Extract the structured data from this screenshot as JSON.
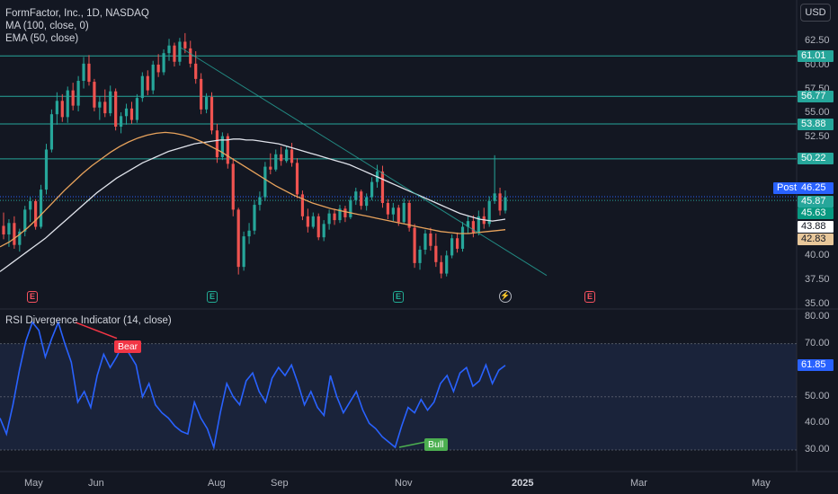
{
  "header": {
    "symbol_line": "FormFactor, Inc., 1D, NASDAQ",
    "ma_line": "MA (100, close, 0)",
    "ema_line": "EMA (50, close)",
    "currency_button": "USD"
  },
  "price_scale": {
    "ticks": [
      "62.50",
      "60.00",
      "57.50",
      "55.00",
      "52.50",
      "40.00",
      "37.50",
      "35.00"
    ],
    "values": [
      62.5,
      60.0,
      57.5,
      55.0,
      52.5,
      40.0,
      37.5,
      35.0
    ]
  },
  "horizontal_levels": [
    {
      "label": "61.01",
      "value": 61.01
    },
    {
      "label": "56.77",
      "value": 56.77
    },
    {
      "label": "53.88",
      "value": 53.88
    },
    {
      "label": "50.22",
      "value": 50.22
    }
  ],
  "price_tags": {
    "post_label": "Post",
    "post_price": "46.25",
    "last_price": "45.87",
    "last_price_2": "45.63",
    "ma_value": "43.88",
    "ema_value": "42.83"
  },
  "price_tag_values": {
    "post": 46.25,
    "last": 45.87,
    "last2": 45.63,
    "ma": 43.88,
    "ema": 42.83
  },
  "events": [
    {
      "symbol": "E",
      "kind": "earnings-past"
    },
    {
      "symbol": "E",
      "kind": "earnings-past"
    },
    {
      "symbol": "E",
      "kind": "earnings-past"
    },
    {
      "symbol": "⚡",
      "kind": "split"
    },
    {
      "symbol": "E",
      "kind": "earnings-upcoming"
    }
  ],
  "rsi": {
    "title": "RSI Divergence Indicator (14, close)",
    "ticks": [
      "80.00",
      "70.00",
      "50.00",
      "40.00",
      "30.00"
    ],
    "tick_values": [
      80,
      70,
      50,
      40,
      30
    ],
    "current_label": "61.85",
    "current_value": 61.85,
    "bear_label": "Bear",
    "bull_label": "Bull"
  },
  "time_axis": [
    "May",
    "Jun",
    "Aug",
    "Sep",
    "Nov",
    "2025",
    "Mar",
    "May"
  ],
  "colors": {
    "background": "#131722",
    "up": "#26a69a",
    "down": "#ef5350",
    "level": "#26a69a",
    "ma": "#e0e3eb",
    "ema": "#e8a35c",
    "rsi_line": "#2962ff",
    "rsi_band": "#1e2a44",
    "post_tag": "#2962ff",
    "bear": "#f23645",
    "bull": "#4caf50"
  },
  "chart_data": {
    "type": "candlestick",
    "ylim": [
      35.0,
      63.5
    ],
    "series_names": [
      "MA (100, close, 0)",
      "EMA (50, close)"
    ],
    "candles": [
      [
        43.2,
        44.6,
        41.8,
        42.3
      ],
      [
        42.3,
        43.9,
        41.0,
        43.5
      ],
      [
        43.5,
        44.2,
        40.8,
        41.2
      ],
      [
        41.2,
        42.9,
        40.5,
        42.6
      ],
      [
        42.6,
        45.3,
        42.1,
        44.9
      ],
      [
        44.9,
        46.2,
        43.6,
        45.8
      ],
      [
        45.8,
        46.0,
        42.8,
        43.1
      ],
      [
        43.1,
        47.5,
        42.9,
        47.0
      ],
      [
        47.0,
        51.8,
        46.5,
        51.2
      ],
      [
        51.2,
        55.4,
        50.9,
        54.9
      ],
      [
        54.9,
        57.2,
        53.8,
        56.3
      ],
      [
        56.3,
        57.0,
        54.1,
        54.6
      ],
      [
        54.6,
        57.8,
        54.0,
        57.4
      ],
      [
        57.4,
        58.2,
        55.3,
        55.8
      ],
      [
        55.8,
        58.9,
        55.2,
        58.4
      ],
      [
        58.4,
        60.9,
        57.6,
        60.2
      ],
      [
        60.2,
        61.1,
        57.9,
        58.3
      ],
      [
        58.3,
        58.6,
        55.2,
        55.6
      ],
      [
        55.6,
        56.8,
        54.3,
        56.2
      ],
      [
        56.2,
        57.5,
        54.6,
        55.0
      ],
      [
        55.0,
        57.9,
        54.7,
        57.3
      ],
      [
        57.3,
        57.6,
        53.2,
        53.6
      ],
      [
        53.6,
        55.1,
        52.9,
        54.7
      ],
      [
        54.7,
        56.0,
        53.8,
        55.5
      ],
      [
        55.5,
        56.2,
        53.9,
        54.3
      ],
      [
        54.3,
        57.0,
        54.0,
        56.6
      ],
      [
        56.6,
        59.3,
        56.2,
        58.9
      ],
      [
        58.9,
        59.5,
        56.9,
        57.4
      ],
      [
        57.4,
        60.5,
        57.0,
        60.1
      ],
      [
        60.1,
        61.2,
        58.8,
        59.3
      ],
      [
        59.3,
        61.7,
        59.0,
        61.3
      ],
      [
        61.3,
        62.8,
        60.5,
        62.1
      ],
      [
        62.1,
        62.4,
        59.9,
        60.4
      ],
      [
        60.4,
        62.9,
        60.0,
        62.5
      ],
      [
        62.5,
        63.4,
        61.3,
        61.8
      ],
      [
        61.8,
        62.6,
        59.8,
        60.2
      ],
      [
        60.2,
        61.5,
        58.1,
        58.6
      ],
      [
        58.6,
        59.2,
        54.9,
        55.4
      ],
      [
        55.4,
        57.1,
        55.0,
        56.7
      ],
      [
        56.7,
        57.2,
        52.8,
        53.2
      ],
      [
        53.2,
        53.9,
        49.8,
        50.4
      ],
      [
        50.4,
        53.0,
        50.1,
        52.6
      ],
      [
        52.6,
        52.9,
        49.2,
        49.7
      ],
      [
        49.7,
        50.3,
        44.2,
        44.9
      ],
      [
        44.9,
        45.1,
        38.1,
        38.9
      ],
      [
        38.9,
        42.6,
        38.5,
        42.1
      ],
      [
        42.1,
        43.5,
        41.3,
        42.7
      ],
      [
        42.7,
        45.9,
        42.3,
        45.4
      ],
      [
        45.4,
        46.8,
        44.8,
        46.2
      ],
      [
        46.2,
        49.9,
        45.8,
        49.4
      ],
      [
        49.4,
        50.8,
        48.6,
        49.1
      ],
      [
        49.1,
        51.2,
        48.9,
        50.7
      ],
      [
        50.7,
        51.5,
        49.5,
        50.0
      ],
      [
        50.0,
        51.6,
        49.8,
        51.2
      ],
      [
        51.2,
        51.9,
        49.4,
        49.8
      ],
      [
        49.8,
        50.3,
        46.1,
        46.5
      ],
      [
        46.5,
        46.9,
        43.8,
        44.2
      ],
      [
        44.2,
        45.0,
        42.5,
        43.1
      ],
      [
        43.1,
        44.6,
        42.9,
        44.2
      ],
      [
        44.2,
        44.5,
        41.7,
        42.0
      ],
      [
        42.0,
        43.8,
        41.6,
        43.4
      ],
      [
        43.4,
        44.9,
        42.8,
        44.5
      ],
      [
        44.5,
        45.0,
        43.3,
        43.8
      ],
      [
        43.8,
        45.4,
        43.5,
        45.0
      ],
      [
        45.0,
        45.3,
        43.6,
        44.1
      ],
      [
        44.1,
        46.3,
        43.9,
        45.9
      ],
      [
        45.9,
        47.2,
        45.4,
        46.8
      ],
      [
        46.8,
        47.0,
        44.9,
        45.3
      ],
      [
        45.3,
        46.6,
        44.8,
        46.2
      ],
      [
        46.2,
        48.3,
        45.9,
        47.8
      ],
      [
        47.8,
        49.6,
        47.2,
        48.9
      ],
      [
        48.9,
        49.5,
        45.1,
        45.6
      ],
      [
        45.6,
        46.0,
        43.9,
        44.4
      ],
      [
        44.4,
        45.6,
        43.7,
        45.1
      ],
      [
        45.1,
        45.4,
        43.2,
        43.6
      ],
      [
        43.6,
        46.1,
        43.4,
        45.6
      ],
      [
        45.6,
        45.9,
        42.6,
        43.0
      ],
      [
        43.0,
        43.4,
        38.8,
        39.3
      ],
      [
        39.3,
        41.1,
        38.6,
        40.7
      ],
      [
        40.7,
        42.8,
        40.2,
        42.4
      ],
      [
        42.4,
        43.0,
        40.6,
        41.1
      ],
      [
        41.1,
        42.4,
        38.9,
        39.4
      ],
      [
        39.4,
        40.1,
        37.7,
        38.2
      ],
      [
        38.2,
        40.6,
        37.9,
        40.1
      ],
      [
        40.1,
        42.3,
        39.8,
        41.9
      ],
      [
        41.9,
        42.5,
        40.4,
        40.8
      ],
      [
        40.8,
        43.6,
        40.5,
        43.1
      ],
      [
        43.1,
        44.2,
        42.4,
        43.7
      ],
      [
        43.7,
        44.3,
        42.0,
        42.5
      ],
      [
        42.5,
        44.8,
        42.2,
        44.2
      ],
      [
        44.2,
        45.1,
        42.9,
        43.4
      ],
      [
        43.4,
        46.3,
        43.1,
        45.8
      ],
      [
        45.8,
        50.6,
        45.5,
        46.6
      ],
      [
        46.6,
        47.2,
        44.3,
        44.8
      ],
      [
        44.8,
        46.9,
        44.5,
        46.2
      ]
    ],
    "ma_100": [
      38.4,
      38.9,
      39.4,
      39.9,
      40.4,
      40.9,
      41.4,
      41.9,
      42.5,
      43.1,
      43.7,
      44.3,
      44.9,
      45.5,
      46.1,
      46.7,
      47.2,
      47.7,
      48.2,
      48.6,
      49.0,
      49.4,
      49.8,
      50.1,
      50.4,
      50.7,
      51.0,
      51.2,
      51.4,
      51.6,
      51.8,
      51.9,
      52.0,
      52.1,
      52.2,
      52.2,
      52.3,
      52.3,
      52.2,
      52.2,
      52.1,
      52.0,
      51.9,
      51.8,
      51.6,
      51.4,
      51.2,
      51.0,
      50.8,
      50.6,
      50.4,
      50.2,
      50.0,
      49.8,
      49.6,
      49.3,
      49.0,
      48.7,
      48.4,
      48.1,
      47.8,
      47.5,
      47.2,
      46.9,
      46.6,
      46.3,
      46.0,
      45.7,
      45.4,
      45.1,
      44.8,
      44.5,
      44.3,
      44.1,
      43.9,
      43.8,
      43.7,
      43.8,
      43.9
    ],
    "ema_50": [
      41.0,
      41.5,
      42.2,
      43.0,
      43.9,
      44.9,
      45.9,
      46.9,
      47.8,
      48.7,
      49.5,
      50.2,
      50.9,
      51.5,
      52.0,
      52.4,
      52.7,
      52.9,
      53.0,
      52.9,
      52.7,
      52.4,
      52.0,
      51.5,
      51.0,
      50.4,
      49.8,
      49.2,
      48.6,
      48.0,
      47.4,
      46.9,
      46.4,
      46.0,
      45.6,
      45.3,
      45.0,
      44.8,
      44.6,
      44.4,
      44.2,
      44.0,
      43.8,
      43.6,
      43.4,
      43.2,
      43.0,
      42.8,
      42.6,
      42.5,
      42.4,
      42.4,
      42.5,
      42.6,
      42.7,
      42.8
    ],
    "trendline": {
      "from_price": 62.0,
      "to_price": 38.0
    },
    "rsi_values": [
      42,
      36,
      47,
      60,
      71,
      78,
      75,
      65,
      72,
      78,
      70,
      63,
      48,
      52,
      46,
      58,
      66,
      61,
      65,
      70,
      66,
      62,
      50,
      55,
      47,
      44,
      42,
      39,
      37,
      36,
      48,
      42,
      38,
      31,
      44,
      55,
      50,
      47,
      56,
      59,
      52,
      48,
      57,
      61,
      58,
      62,
      55,
      47,
      52,
      46,
      43,
      58,
      50,
      44,
      48,
      52,
      45,
      40,
      38,
      35,
      33,
      31,
      39,
      46,
      44,
      49,
      45,
      48,
      55,
      58,
      52,
      59,
      61,
      54,
      56,
      62,
      55,
      60,
      61.85
    ],
    "rsi_ylim": [
      27,
      81
    ]
  }
}
